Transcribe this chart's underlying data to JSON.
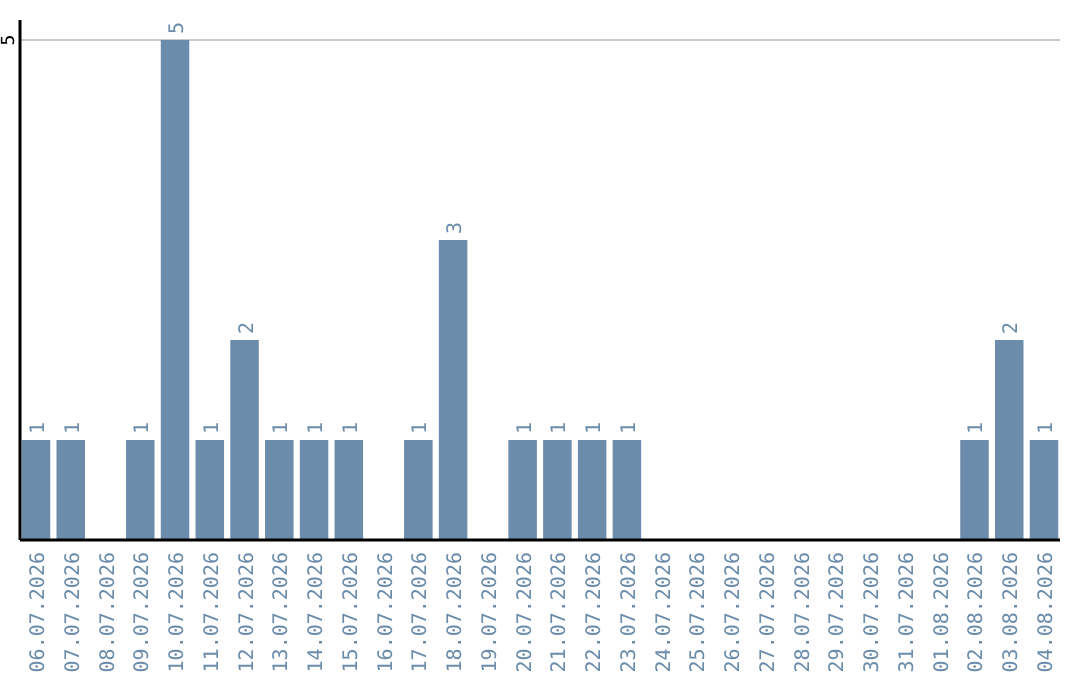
{
  "chart_data": {
    "type": "bar",
    "categories": [
      "06.07.2026",
      "07.07.2026",
      "08.07.2026",
      "09.07.2026",
      "10.07.2026",
      "11.07.2026",
      "12.07.2026",
      "13.07.2026",
      "14.07.2026",
      "15.07.2026",
      "16.07.2026",
      "17.07.2026",
      "18.07.2026",
      "19.07.2026",
      "20.07.2026",
      "21.07.2026",
      "22.07.2026",
      "23.07.2026",
      "24.07.2026",
      "25.07.2026",
      "26.07.2026",
      "27.07.2026",
      "28.07.2026",
      "29.07.2026",
      "30.07.2026",
      "31.07.2026",
      "01.08.2026",
      "02.08.2026",
      "03.08.2026",
      "04.08.2026"
    ],
    "values": [
      1,
      1,
      0,
      1,
      5,
      1,
      2,
      1,
      1,
      1,
      0,
      1,
      3,
      0,
      1,
      1,
      1,
      1,
      0,
      0,
      0,
      0,
      0,
      0,
      0,
      0,
      0,
      1,
      2,
      1
    ],
    "value_labels": [
      "1",
      "1",
      null,
      "1",
      "5",
      "1",
      "2",
      "1",
      "1",
      "1",
      null,
      "1",
      "3",
      null,
      "1",
      "1",
      "1",
      "1",
      null,
      null,
      null,
      null,
      null,
      null,
      null,
      null,
      null,
      "1",
      "2",
      "1"
    ],
    "color": "#6b8cab",
    "ylim": [
      0,
      5.2
    ],
    "yticks": [
      5
    ],
    "grid": "y"
  }
}
